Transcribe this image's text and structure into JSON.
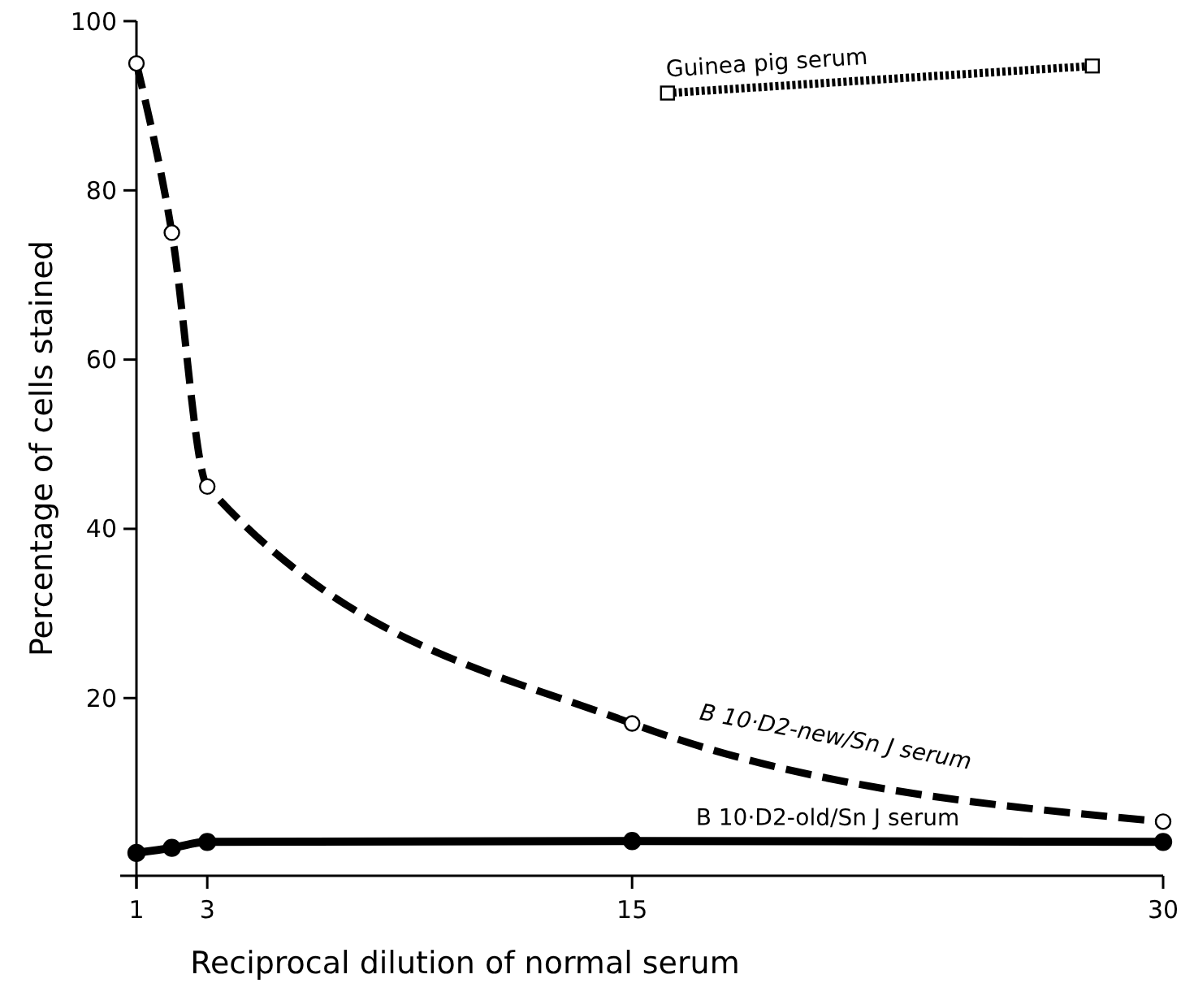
{
  "chart_data": {
    "type": "line",
    "xlabel": "Reciprocal dilution of normal serum",
    "ylabel": "Percentage of cells stained",
    "xlim": [
      1,
      30
    ],
    "xticks": [
      1,
      3,
      15,
      30
    ],
    "ylim": [
      -1,
      100
    ],
    "yticks": [
      20,
      40,
      60,
      80,
      100
    ],
    "grid": false,
    "legend": false,
    "series": [
      {
        "name": "B 10·D2-new/Sn J serum",
        "color": "#000000",
        "x": [
          1,
          2,
          3,
          15,
          30
        ],
        "values": [
          95,
          75,
          45,
          17,
          5.4
        ],
        "marker": "circle",
        "line_style": "dashed"
      },
      {
        "name": "B 10·D2-old/Sn J serum",
        "color": "#000000",
        "x": [
          1,
          2,
          3,
          15,
          30
        ],
        "values": [
          1.7,
          2.3,
          3,
          3.1,
          3
        ],
        "marker": "circle",
        "line_style": "solid"
      },
      {
        "name": "Guinea pig serum",
        "color": "#000000",
        "x": [
          16,
          28
        ],
        "values": [
          91.5,
          94.7
        ],
        "marker": "square",
        "line_style": "dotted"
      }
    ]
  }
}
